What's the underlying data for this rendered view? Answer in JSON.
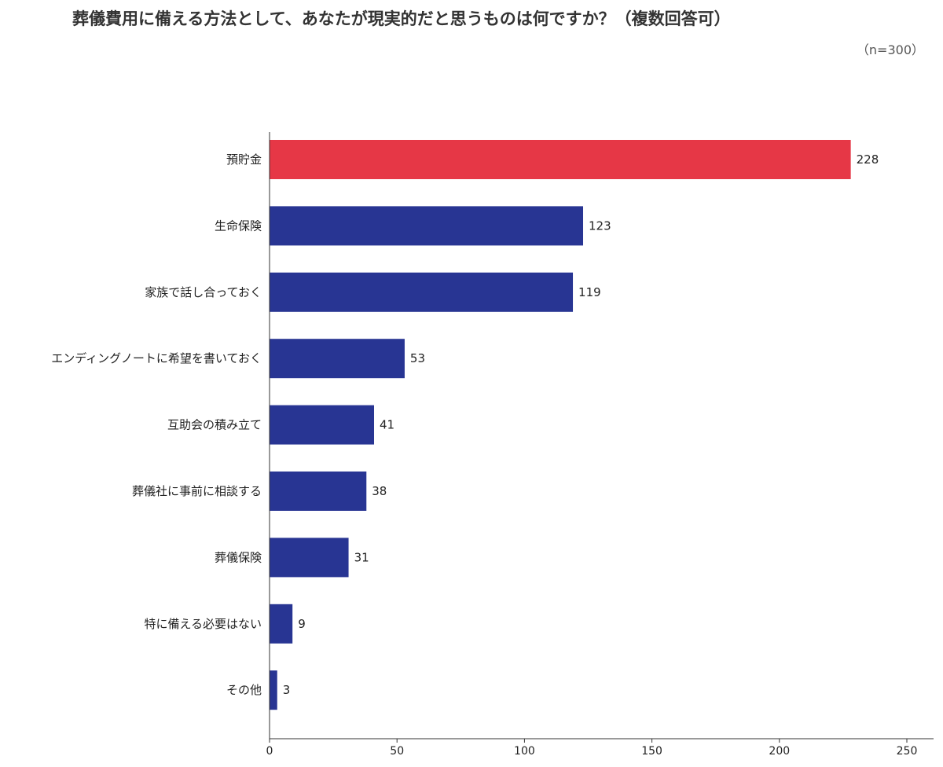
{
  "chart_data": {
    "type": "bar",
    "orientation": "horizontal",
    "title": "葬儀費用に備える方法として、あなたが現実的だと思うものは何ですか？（複数回答可）",
    "subtitle": "（n=300）",
    "categories": [
      "預貯金",
      "生命保険",
      "家族で話し合っておく",
      "エンディングノートに希望を書いておく",
      "互助会の積み立て",
      "葬儀社に事前に相談する",
      "葬儀保険",
      "特に備える必要はない",
      "その他"
    ],
    "values": [
      228,
      123,
      119,
      53,
      41,
      38,
      31,
      9,
      3
    ],
    "xlim": [
      0,
      250
    ],
    "xticks": [
      0,
      50,
      100,
      150,
      200,
      250
    ],
    "grid": false,
    "legend": "none",
    "highlight_index": 0,
    "colors": {
      "highlight": "#e63746",
      "default": "#283593",
      "axis": "#333333"
    }
  }
}
